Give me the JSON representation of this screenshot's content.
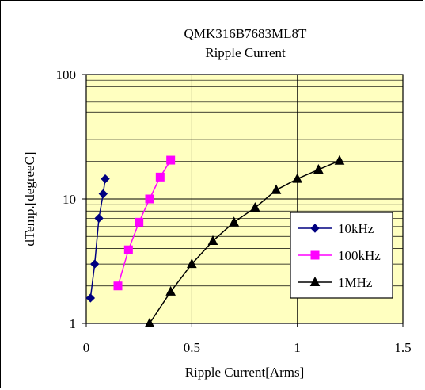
{
  "chart_data": {
    "type": "line",
    "title": "QMK316B7683ML8T",
    "subtitle": "Ripple Current",
    "xlabel": "Ripple Current[Arms]",
    "ylabel": "dTemp.[degreeC]",
    "xlim": [
      0,
      1.5
    ],
    "ylim": [
      1,
      100
    ],
    "yscale": "log",
    "x_ticks": [
      0,
      0.5,
      1,
      1.5
    ],
    "x_tick_labels": [
      "0",
      "0.5",
      "1",
      "1.5"
    ],
    "y_ticks": [
      1,
      10,
      100
    ],
    "y_tick_labels": [
      "1",
      "10",
      "100"
    ],
    "grid": true,
    "plot_background": "#ffffc0",
    "legend_position": "right",
    "series": [
      {
        "name": "10kHz",
        "color": "#000080",
        "marker": "diamond",
        "x": [
          0.02,
          0.04,
          0.06,
          0.08,
          0.09
        ],
        "y": [
          1.6,
          3.0,
          7.0,
          11.0,
          14.5
        ]
      },
      {
        "name": "100kHz",
        "color": "#ff00ff",
        "marker": "square",
        "x": [
          0.15,
          0.2,
          0.25,
          0.3,
          0.35,
          0.4
        ],
        "y": [
          2.0,
          3.9,
          6.5,
          10.0,
          15.0,
          20.5
        ]
      },
      {
        "name": "1MHz",
        "color": "#000000",
        "marker": "triangle",
        "x": [
          0.3,
          0.4,
          0.5,
          0.6,
          0.7,
          0.8,
          0.9,
          1.0,
          1.1,
          1.2
        ],
        "y": [
          1.0,
          1.8,
          3.0,
          4.6,
          6.5,
          8.5,
          11.8,
          14.5,
          17.2,
          20.3
        ]
      }
    ]
  }
}
